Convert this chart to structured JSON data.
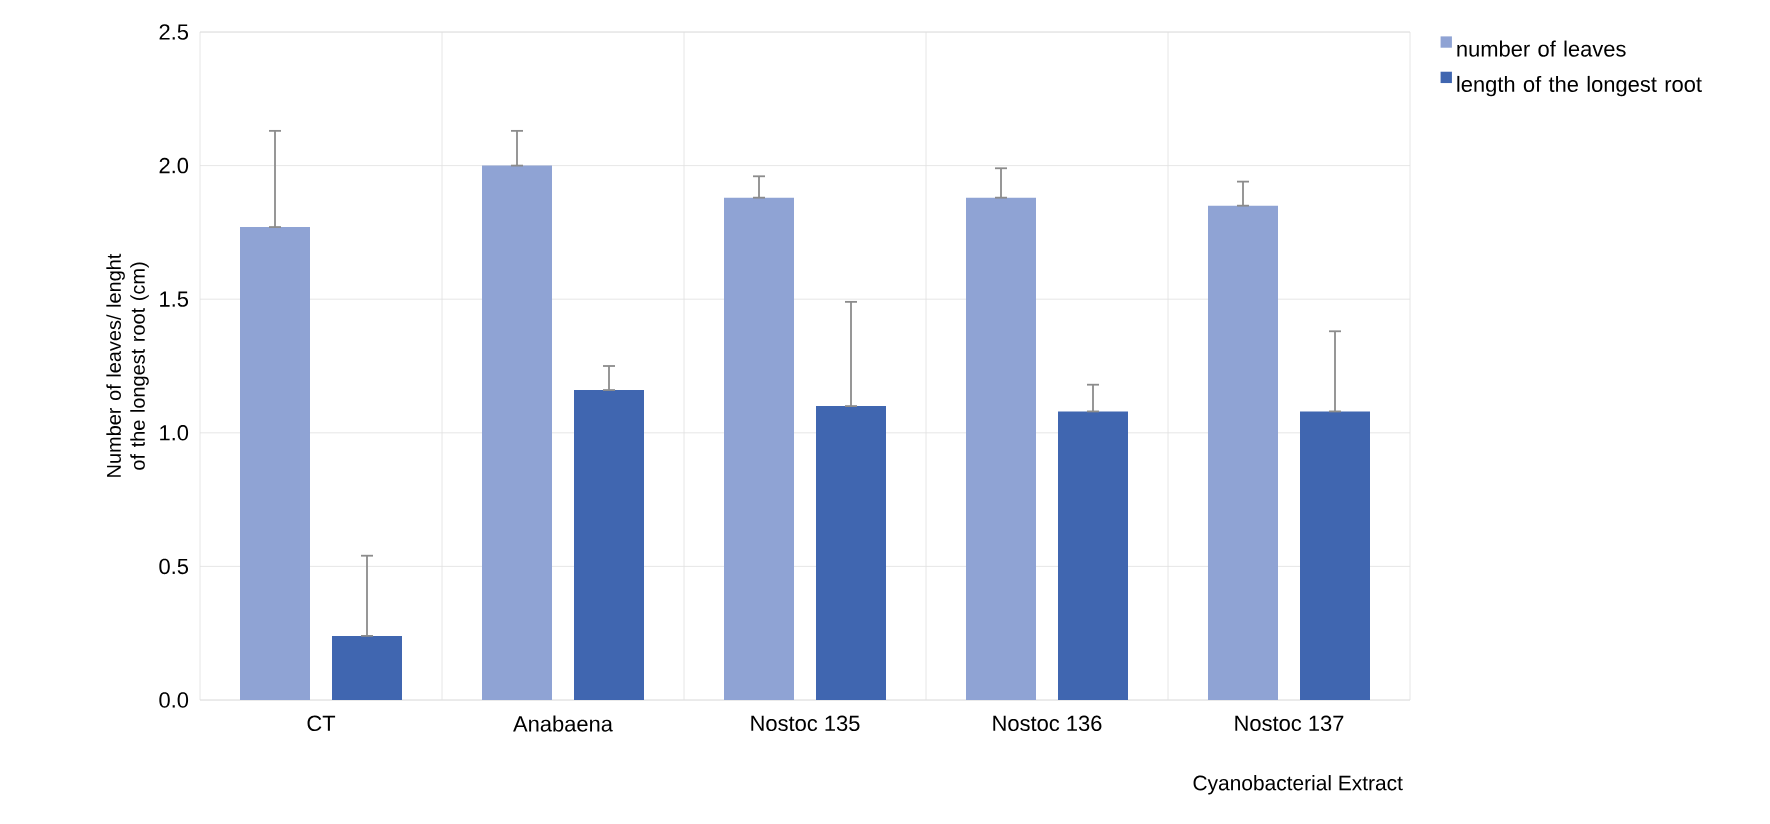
{
  "chart_data": {
    "type": "bar",
    "xlabel": "Cyanobacterial Extract",
    "ylabel": "Number of leaves/ lenght of the longest root (cm)",
    "categories": [
      "CT",
      "Anabaena",
      "Nostoc 135",
      "Nostoc 136",
      "Nostoc 137"
    ],
    "series": [
      {
        "name": "number of leaves",
        "color": "#8fa3d4",
        "values": [
          1.77,
          2.0,
          1.88,
          1.88,
          1.85
        ],
        "errors": [
          [
            1.77,
            2.13
          ],
          [
            2.0,
            2.13
          ],
          [
            1.88,
            1.96
          ],
          [
            1.88,
            1.99
          ],
          [
            1.85,
            1.94
          ]
        ]
      },
      {
        "name": "length of the longest root",
        "color": "#4066b0",
        "values": [
          0.24,
          1.16,
          1.1,
          1.08,
          1.08
        ],
        "errors": [
          [
            0.24,
            0.54
          ],
          [
            1.16,
            1.25
          ],
          [
            1.1,
            1.49
          ],
          [
            1.08,
            1.18
          ],
          [
            1.08,
            1.38
          ]
        ]
      }
    ],
    "ylim": [
      0,
      2.5
    ],
    "yticks": [
      {
        "value": 0,
        "label": "0.0"
      },
      {
        "value": 0.5,
        "label": "0.5"
      },
      {
        "value": 1,
        "label": "1.0"
      },
      {
        "value": 1.5,
        "label": "1.5"
      },
      {
        "value": 2,
        "label": "2.0"
      },
      {
        "value": 2.5,
        "label": "2.5"
      }
    ],
    "grid": true,
    "legend": "top right"
  }
}
